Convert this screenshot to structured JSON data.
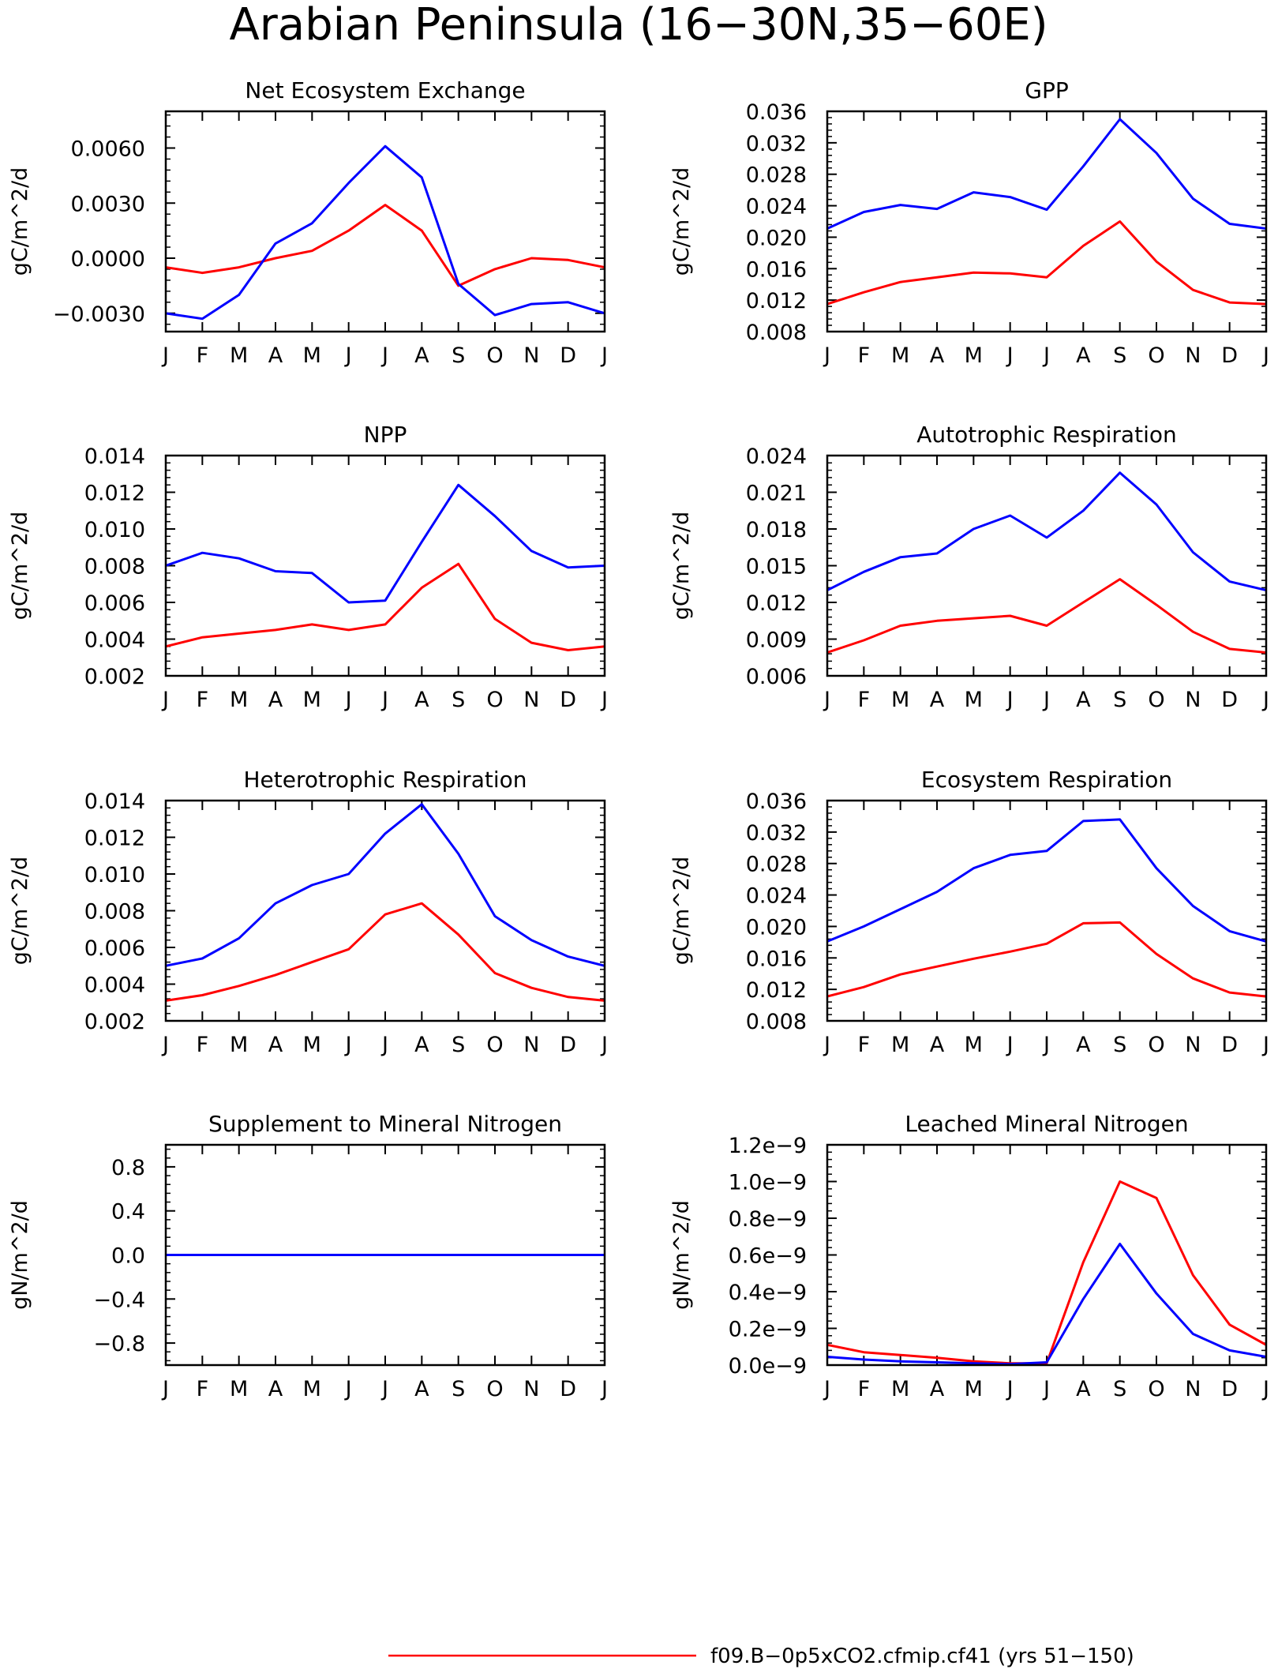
{
  "figure": {
    "title": "Arabian Peninsula (16−30N,35−60E)"
  },
  "colors": {
    "series_a": "#ff0000",
    "series_b": "#0000ff",
    "axis": "#000000"
  },
  "legend": [
    {
      "label": "f09.B−0p5xCO2.cfmip.cf41 (yrs 51−150)",
      "color": "#ff0000"
    }
  ],
  "chart_data": [
    {
      "type": "line",
      "title": "Net Ecosystem Exchange",
      "ylabel": "gC/m^2/d",
      "ylim": [
        -0.004,
        0.008
      ],
      "yticks": [
        -0.003,
        0.0,
        0.003,
        0.006
      ],
      "ytick_labels": [
        "−0.0030",
        "0.0000",
        "0.0030",
        "0.0060"
      ],
      "categories": [
        "J",
        "F",
        "M",
        "A",
        "M",
        "J",
        "J",
        "A",
        "S",
        "O",
        "N",
        "D",
        "J"
      ],
      "series": [
        {
          "color": "#ff0000",
          "values": [
            -0.0005,
            -0.0008,
            -0.0005,
            0.0,
            0.0004,
            0.0015,
            0.0029,
            0.0015,
            -0.0015,
            -0.0006,
            0.0,
            -0.0001,
            -0.0005
          ]
        },
        {
          "color": "#0000ff",
          "values": [
            -0.003,
            -0.0033,
            -0.002,
            0.0008,
            0.0019,
            0.0041,
            0.0061,
            0.0044,
            -0.0014,
            -0.0031,
            -0.0025,
            -0.0024,
            -0.003
          ]
        }
      ]
    },
    {
      "type": "line",
      "title": "GPP",
      "ylabel": "gC/m^2/d",
      "ylim": [
        0.008,
        0.036
      ],
      "yticks": [
        0.008,
        0.012,
        0.016,
        0.02,
        0.024,
        0.028,
        0.032,
        0.036
      ],
      "ytick_labels": [
        "0.008",
        "0.012",
        "0.016",
        "0.020",
        "0.024",
        "0.028",
        "0.032",
        "0.036"
      ],
      "categories": [
        "J",
        "F",
        "M",
        "A",
        "M",
        "J",
        "J",
        "A",
        "S",
        "O",
        "N",
        "D",
        "J"
      ],
      "series": [
        {
          "color": "#ff0000",
          "values": [
            0.0115,
            0.013,
            0.0143,
            0.0149,
            0.0155,
            0.0154,
            0.0149,
            0.0189,
            0.022,
            0.0169,
            0.0133,
            0.0117,
            0.0115
          ]
        },
        {
          "color": "#0000ff",
          "values": [
            0.0211,
            0.0232,
            0.0241,
            0.0236,
            0.0257,
            0.0251,
            0.0235,
            0.029,
            0.035,
            0.0307,
            0.0249,
            0.0217,
            0.0211
          ]
        }
      ]
    },
    {
      "type": "line",
      "title": "NPP",
      "ylabel": "gC/m^2/d",
      "ylim": [
        0.002,
        0.014
      ],
      "yticks": [
        0.002,
        0.004,
        0.006,
        0.008,
        0.01,
        0.012,
        0.014
      ],
      "ytick_labels": [
        "0.002",
        "0.004",
        "0.006",
        "0.008",
        "0.010",
        "0.012",
        "0.014"
      ],
      "categories": [
        "J",
        "F",
        "M",
        "A",
        "M",
        "J",
        "J",
        "A",
        "S",
        "O",
        "N",
        "D",
        "J"
      ],
      "series": [
        {
          "color": "#ff0000",
          "values": [
            0.0036,
            0.0041,
            0.0043,
            0.0045,
            0.0048,
            0.0045,
            0.0048,
            0.0068,
            0.0081,
            0.0051,
            0.0038,
            0.0034,
            0.0036
          ]
        },
        {
          "color": "#0000ff",
          "values": [
            0.008,
            0.0087,
            0.0084,
            0.0077,
            0.0076,
            0.006,
            0.0061,
            0.0093,
            0.0124,
            0.0107,
            0.0088,
            0.0079,
            0.008
          ]
        }
      ]
    },
    {
      "type": "line",
      "title": "Autotrophic Respiration",
      "ylabel": "gC/m^2/d",
      "ylim": [
        0.006,
        0.024
      ],
      "yticks": [
        0.006,
        0.009,
        0.012,
        0.015,
        0.018,
        0.021,
        0.024
      ],
      "ytick_labels": [
        "0.006",
        "0.009",
        "0.012",
        "0.015",
        "0.018",
        "0.021",
        "0.024"
      ],
      "categories": [
        "J",
        "F",
        "M",
        "A",
        "M",
        "J",
        "J",
        "A",
        "S",
        "O",
        "N",
        "D",
        "J"
      ],
      "series": [
        {
          "color": "#ff0000",
          "values": [
            0.0079,
            0.0089,
            0.0101,
            0.0105,
            0.0107,
            0.0109,
            0.0101,
            0.012,
            0.0139,
            0.0118,
            0.0096,
            0.0082,
            0.0079
          ]
        },
        {
          "color": "#0000ff",
          "values": [
            0.013,
            0.0145,
            0.0157,
            0.016,
            0.018,
            0.0191,
            0.0173,
            0.0195,
            0.0226,
            0.02,
            0.0161,
            0.0137,
            0.013
          ]
        }
      ]
    },
    {
      "type": "line",
      "title": "Heterotrophic Respiration",
      "ylabel": "gC/m^2/d",
      "ylim": [
        0.002,
        0.014
      ],
      "yticks": [
        0.002,
        0.004,
        0.006,
        0.008,
        0.01,
        0.012,
        0.014
      ],
      "ytick_labels": [
        "0.002",
        "0.004",
        "0.006",
        "0.008",
        "0.010",
        "0.012",
        "0.014"
      ],
      "categories": [
        "J",
        "F",
        "M",
        "A",
        "M",
        "J",
        "J",
        "A",
        "S",
        "O",
        "N",
        "D",
        "J"
      ],
      "series": [
        {
          "color": "#ff0000",
          "values": [
            0.0031,
            0.0034,
            0.0039,
            0.0045,
            0.0052,
            0.0059,
            0.0078,
            0.0084,
            0.0067,
            0.0046,
            0.0038,
            0.0033,
            0.0031
          ]
        },
        {
          "color": "#0000ff",
          "values": [
            0.005,
            0.0054,
            0.0065,
            0.0084,
            0.0094,
            0.01,
            0.0122,
            0.0138,
            0.0111,
            0.0077,
            0.0064,
            0.0055,
            0.005
          ]
        }
      ]
    },
    {
      "type": "line",
      "title": "Ecosystem Respiration",
      "ylabel": "gC/m^2/d",
      "ylim": [
        0.008,
        0.036
      ],
      "yticks": [
        0.008,
        0.012,
        0.016,
        0.02,
        0.024,
        0.028,
        0.032,
        0.036
      ],
      "ytick_labels": [
        "0.008",
        "0.012",
        "0.016",
        "0.020",
        "0.024",
        "0.028",
        "0.032",
        "0.036"
      ],
      "categories": [
        "J",
        "F",
        "M",
        "A",
        "M",
        "J",
        "J",
        "A",
        "S",
        "O",
        "N",
        "D",
        "J"
      ],
      "series": [
        {
          "color": "#ff0000",
          "values": [
            0.0111,
            0.0123,
            0.0139,
            0.0149,
            0.0159,
            0.0168,
            0.0178,
            0.0204,
            0.0205,
            0.0165,
            0.0134,
            0.0116,
            0.0111
          ]
        },
        {
          "color": "#0000ff",
          "values": [
            0.0181,
            0.02,
            0.0222,
            0.0244,
            0.0274,
            0.0291,
            0.0296,
            0.0334,
            0.0336,
            0.0274,
            0.0226,
            0.0194,
            0.0181
          ]
        }
      ]
    },
    {
      "type": "line",
      "title": "Supplement to Mineral Nitrogen",
      "ylabel": "gN/m^2/d",
      "ylim": [
        -1.0,
        1.0
      ],
      "yticks": [
        -0.8,
        -0.4,
        0.0,
        0.4,
        0.8
      ],
      "ytick_labels": [
        "−0.8",
        "−0.4",
        "0.0",
        "0.4",
        "0.8"
      ],
      "categories": [
        "J",
        "F",
        "M",
        "A",
        "M",
        "J",
        "J",
        "A",
        "S",
        "O",
        "N",
        "D",
        "J"
      ],
      "series": [
        {
          "color": "#ff0000",
          "values": [
            0,
            0,
            0,
            0,
            0,
            0,
            0,
            0,
            0,
            0,
            0,
            0,
            0
          ]
        },
        {
          "color": "#0000ff",
          "values": [
            0,
            0,
            0,
            0,
            0,
            0,
            0,
            0,
            0,
            0,
            0,
            0,
            0
          ]
        }
      ]
    },
    {
      "type": "line",
      "title": "Leached Mineral Nitrogen",
      "ylabel": "gN/m^2/d",
      "ylim": [
        0.0,
        1.2
      ],
      "yticks": [
        0.0,
        0.2,
        0.4,
        0.6,
        0.8,
        1.0,
        1.2
      ],
      "ytick_labels": [
        "0.0e−9",
        "0.2e−9",
        "0.4e−9",
        "0.6e−9",
        "0.8e−9",
        "1.0e−9",
        "1.2e−9"
      ],
      "units_note": "values in 1e-9 gN/m^2/d",
      "categories": [
        "J",
        "F",
        "M",
        "A",
        "M",
        "J",
        "J",
        "A",
        "S",
        "O",
        "N",
        "D",
        "J"
      ],
      "series": [
        {
          "color": "#ff0000",
          "values": [
            0.11,
            0.07,
            0.055,
            0.04,
            0.02,
            0.01,
            0.01,
            0.56,
            1.0,
            0.91,
            0.49,
            0.22,
            0.11
          ]
        },
        {
          "color": "#0000ff",
          "values": [
            0.045,
            0.03,
            0.02,
            0.015,
            0.01,
            0.005,
            0.015,
            0.36,
            0.66,
            0.39,
            0.17,
            0.08,
            0.045
          ]
        }
      ]
    }
  ]
}
